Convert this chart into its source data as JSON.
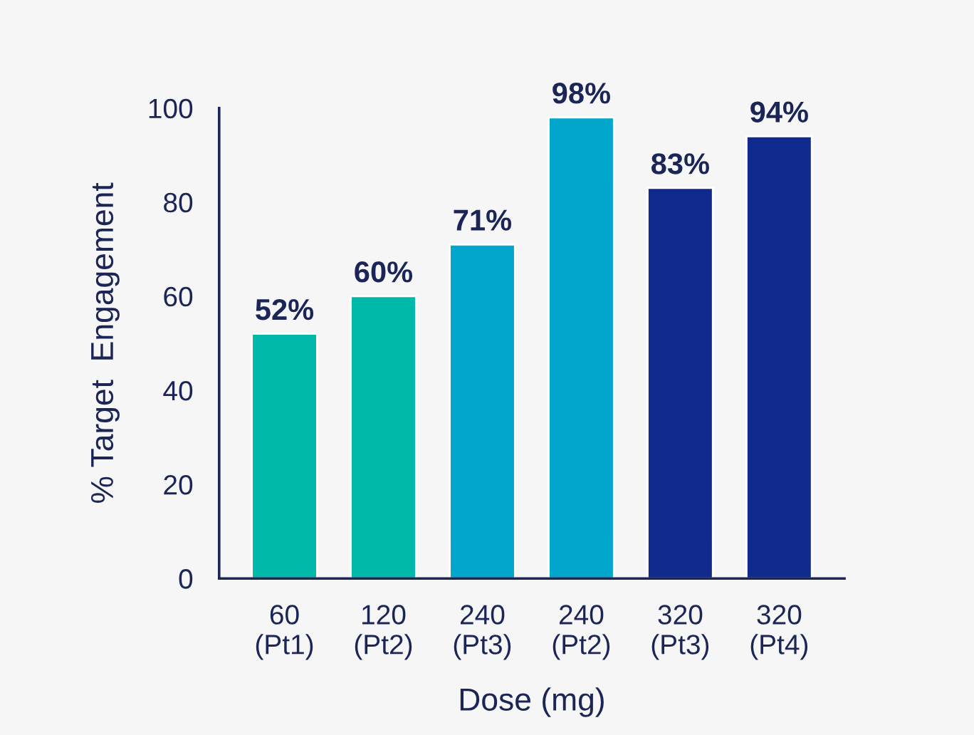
{
  "chart_data": {
    "type": "bar",
    "xlabel": "Dose (mg)",
    "ylabel": "% Target  Engagement",
    "categories": [
      "60\n(Pt1)",
      "120\n(Pt2)",
      "240\n(Pt3)",
      "240\n(Pt2)",
      "320\n(Pt3)",
      "320\n(Pt4)"
    ],
    "values": [
      52,
      60,
      71,
      98,
      83,
      94
    ],
    "value_labels": [
      "52%",
      "60%",
      "71%",
      "98%",
      "83%",
      "94%"
    ],
    "colors": [
      "#00b9ab",
      "#00b9ab",
      "#00a6cb",
      "#00a6cb",
      "#0f2a8c",
      "#0f2a8c"
    ],
    "ylim": [
      0,
      100
    ],
    "yticks": [
      0,
      20,
      40,
      60,
      80,
      100
    ],
    "grid": false,
    "legend": false
  }
}
